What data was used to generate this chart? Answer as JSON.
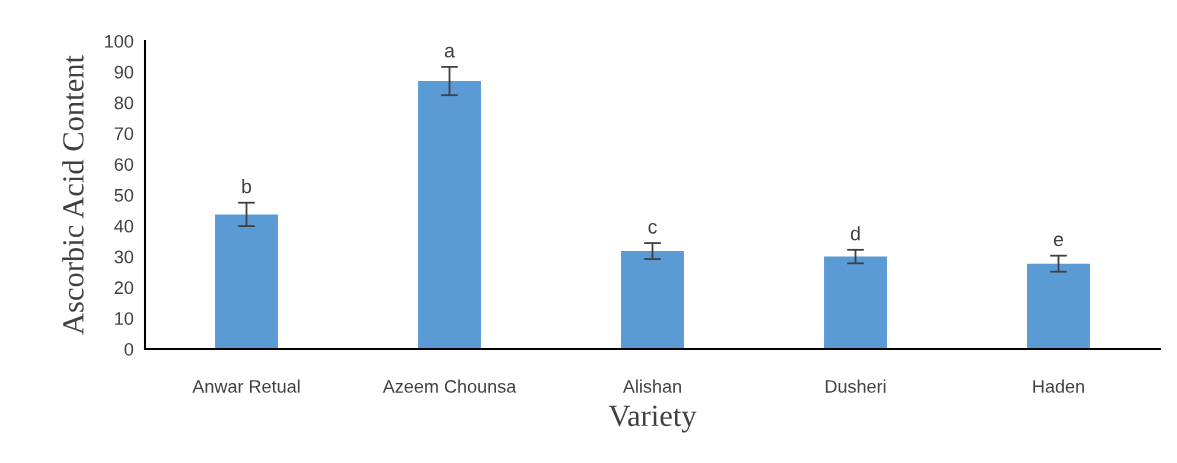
{
  "chart_data": {
    "type": "bar",
    "categories": [
      "Anwar Retual",
      "Azeem Chounsa",
      "Alishan",
      "Dusheri",
      "Haden"
    ],
    "values": [
      43.7,
      87.0,
      31.8,
      30.0,
      27.7
    ],
    "errors": [
      3.8,
      4.6,
      2.6,
      2.2,
      2.6
    ],
    "color": "#5b9bd5",
    "xlabel": "Variety",
    "ylabel": "Ascorbic Acid Content",
    "ylim": [
      0,
      100
    ],
    "yticks": [
      0,
      10,
      20,
      30,
      40,
      50,
      60,
      70,
      80,
      90,
      100
    ],
    "grid": false,
    "legend": false,
    "annotations": [
      {
        "text": "b",
        "x": "Anwar Retual",
        "y": 43.7
      },
      {
        "text": "a",
        "x": "Azeem Chounsa",
        "y": 87.0
      },
      {
        "text": "c",
        "x": "Alishan",
        "y": 31.8
      },
      {
        "text": "d",
        "x": "Dusheri",
        "y": 30.0
      },
      {
        "text": "e",
        "x": "Haden",
        "y": 27.7
      }
    ]
  }
}
